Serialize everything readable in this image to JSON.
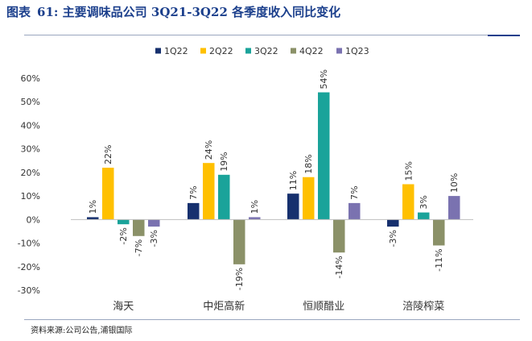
{
  "figure": {
    "label": "图表",
    "number": "61:",
    "title": "主要调味品公司 3Q21-3Q22 各季度收入同比变化",
    "source": "资料来源:公司公告,浦银国际"
  },
  "chart_data": {
    "type": "bar",
    "categories": [
      "海天",
      "中炬高新",
      "恒顺醋业",
      "涪陵榨菜"
    ],
    "series": [
      {
        "name": "1Q22",
        "color": "#16306e",
        "values": [
          1,
          7,
          11,
          -3
        ],
        "labels": [
          "1%",
          "7%",
          "11%",
          "-3%"
        ]
      },
      {
        "name": "2Q22",
        "color": "#ffc000",
        "values": [
          22,
          24,
          18,
          15
        ],
        "labels": [
          "22%",
          "24%",
          "18%",
          "15%"
        ]
      },
      {
        "name": "3Q22",
        "color": "#1aa39a",
        "values": [
          -2,
          19,
          54,
          3
        ],
        "labels": [
          "-2%",
          "19%",
          "54%",
          "3%"
        ]
      },
      {
        "name": "4Q22",
        "color": "#8b9168",
        "values": [
          -7,
          -19,
          -14,
          -11
        ],
        "labels": [
          "-7%",
          "-19%",
          "-14%",
          "-11%"
        ]
      },
      {
        "name": "1Q23",
        "color": "#7a72b0",
        "values": [
          -3,
          1,
          7,
          10
        ],
        "labels": [
          "-3%",
          "1%",
          "7%",
          "10%"
        ]
      }
    ],
    "ylim": [
      -30,
      60
    ],
    "yticks": [
      60,
      50,
      40,
      30,
      20,
      10,
      0,
      -10,
      -20,
      -30
    ],
    "ytick_labels": [
      "60%",
      "50%",
      "40%",
      "30%",
      "20%",
      "10%",
      "0%",
      "-10%",
      "-20%",
      "-30%"
    ],
    "legend_position": "top",
    "grid": false
  }
}
